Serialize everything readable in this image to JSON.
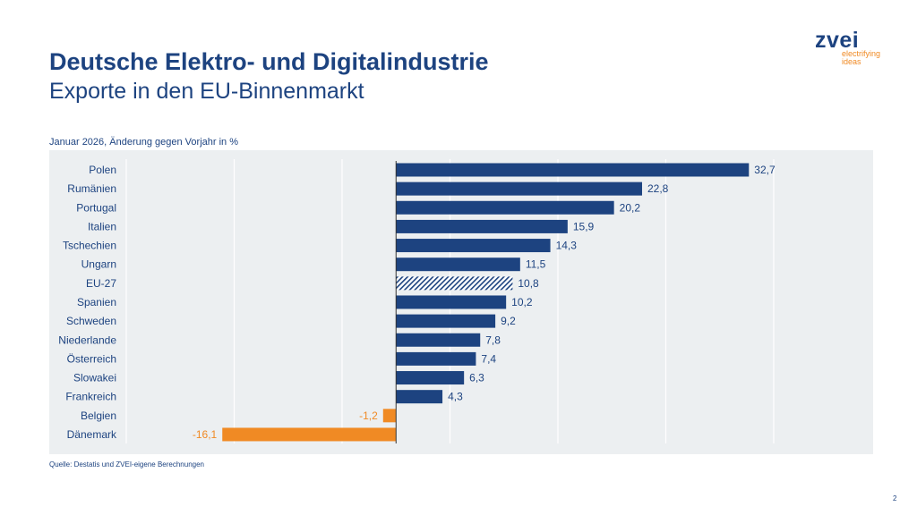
{
  "header": {
    "title": "Deutsche Elektro- und Digitalindustrie",
    "subtitle": "Exporte in den EU-Binnenmarkt",
    "logo_word": "zvei",
    "logo_tagline1": "electrifying",
    "logo_tagline2": "ideas"
  },
  "footer": {
    "source": "Quelle: Destatis und ZVEI-eigene Berechnungen",
    "page_number": "2"
  },
  "colors": {
    "positive": "#1d4380",
    "negative": "#f08a24",
    "background": "#eceff1"
  },
  "chart_data": {
    "type": "bar",
    "orientation": "horizontal",
    "title": "Januar 2026, Änderung gegen Vorjahr in %",
    "categories": [
      "Polen",
      "Rumänien",
      "Portugal",
      "Italien",
      "Tschechien",
      "Ungarn",
      "EU-27",
      "Spanien",
      "Schweden",
      "Niederlande",
      "Österreich",
      "Slowakei",
      "Frankreich",
      "Belgien",
      "Dänemark"
    ],
    "values": [
      32.7,
      22.8,
      20.2,
      15.9,
      14.3,
      11.5,
      10.8,
      10.2,
      9.2,
      7.8,
      7.4,
      6.3,
      4.3,
      -1.2,
      -16.1
    ],
    "labels": [
      "32,7",
      "22,8",
      "20,2",
      "15,9",
      "14,3",
      "11,5",
      "10,8",
      "10,2",
      "9,2",
      "7,8",
      "7,4",
      "6,3",
      "4,3",
      "-1,2",
      "-16,1"
    ],
    "highlight": "EU-27",
    "xlim": [
      -25,
      35
    ],
    "gridlines": [
      -25,
      -15,
      -5,
      5,
      15,
      25,
      35
    ],
    "grid": true,
    "legend": "none"
  }
}
